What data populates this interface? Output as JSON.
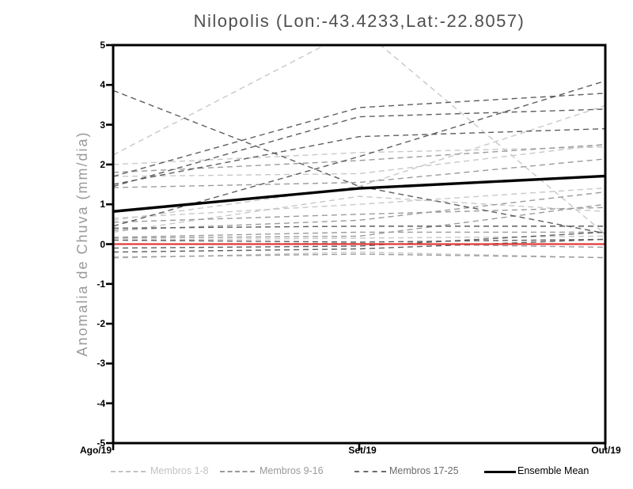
{
  "chart_data": {
    "type": "line",
    "title": "Nilopolis (Lon:-43.4233,Lat:-22.8057)",
    "ylabel": "Anomalia de Chuva (mm/dia)",
    "xlabel": "",
    "x_categories": [
      "Ago/19",
      "Set/19",
      "Out/19"
    ],
    "y_ticks": [
      5,
      4,
      3,
      2,
      1,
      0,
      -1,
      -2,
      -3,
      -4,
      -5
    ],
    "ylim": [
      -5,
      5
    ],
    "grid": false,
    "legend_position": "bottom",
    "member_groups": [
      {
        "name": "Membros 1-8",
        "color": "#c8c8c8",
        "style": "dashed",
        "series": [
          [
            2.24,
            5.45,
            0.25
          ],
          [
            2.0,
            2.3,
            2.44
          ],
          [
            1.7,
            1.77,
            2.5
          ],
          [
            0.65,
            1.0,
            1.41
          ],
          [
            0.6,
            1.45,
            3.48
          ],
          [
            0.3,
            1.2,
            0.82
          ],
          [
            0.1,
            0.15,
            0.2
          ],
          [
            -0.35,
            -0.2,
            -0.34
          ]
        ]
      },
      {
        "name": "Membros 9-16",
        "color": "#9b9b9b",
        "style": "dashed",
        "series": [
          [
            1.8,
            2.1,
            2.5
          ],
          [
            1.42,
            1.55,
            2.14
          ],
          [
            0.55,
            0.75,
            0.92
          ],
          [
            0.35,
            0.6,
            1.31
          ],
          [
            0.17,
            0.3,
            0.3
          ],
          [
            0.0,
            0.02,
            -0.08
          ],
          [
            -0.33,
            -0.25,
            -0.34
          ],
          [
            0.15,
            0.2,
            1.0
          ]
        ]
      },
      {
        "name": "Membros 17-25",
        "color": "#5e5e5e",
        "style": "dashed",
        "series": [
          [
            3.86,
            1.45,
            0.27
          ],
          [
            1.5,
            2.7,
            2.9
          ],
          [
            1.7,
            3.43,
            3.79
          ],
          [
            1.45,
            3.2,
            3.39
          ],
          [
            0.45,
            2.2,
            4.1
          ],
          [
            0.4,
            0.45,
            0.45
          ],
          [
            0.1,
            0.05,
            0.12
          ],
          [
            -0.1,
            -0.05,
            0.3
          ],
          [
            -0.2,
            -0.12,
            0.12
          ]
        ]
      }
    ],
    "ensemble_mean": {
      "name": "Ensemble Mean",
      "color": "#000000",
      "style": "solid",
      "values": [
        0.82,
        1.4,
        1.71
      ]
    },
    "zero_reference_line": {
      "color": "#e23b3b",
      "style": "solid",
      "values": [
        0.0,
        0.0,
        0.0
      ]
    }
  },
  "legend": {
    "items": [
      {
        "label": "Membros 1-8",
        "color": "#c3c3c3",
        "sample": "dashed"
      },
      {
        "label": "Membros 9-16",
        "color": "#9a9a9a",
        "sample": "dashed"
      },
      {
        "label": "Membros 17-25",
        "color": "#6b6b6b",
        "sample": "dashed"
      },
      {
        "label": "Ensemble Mean",
        "color": "#000000",
        "sample": "solid"
      }
    ]
  }
}
